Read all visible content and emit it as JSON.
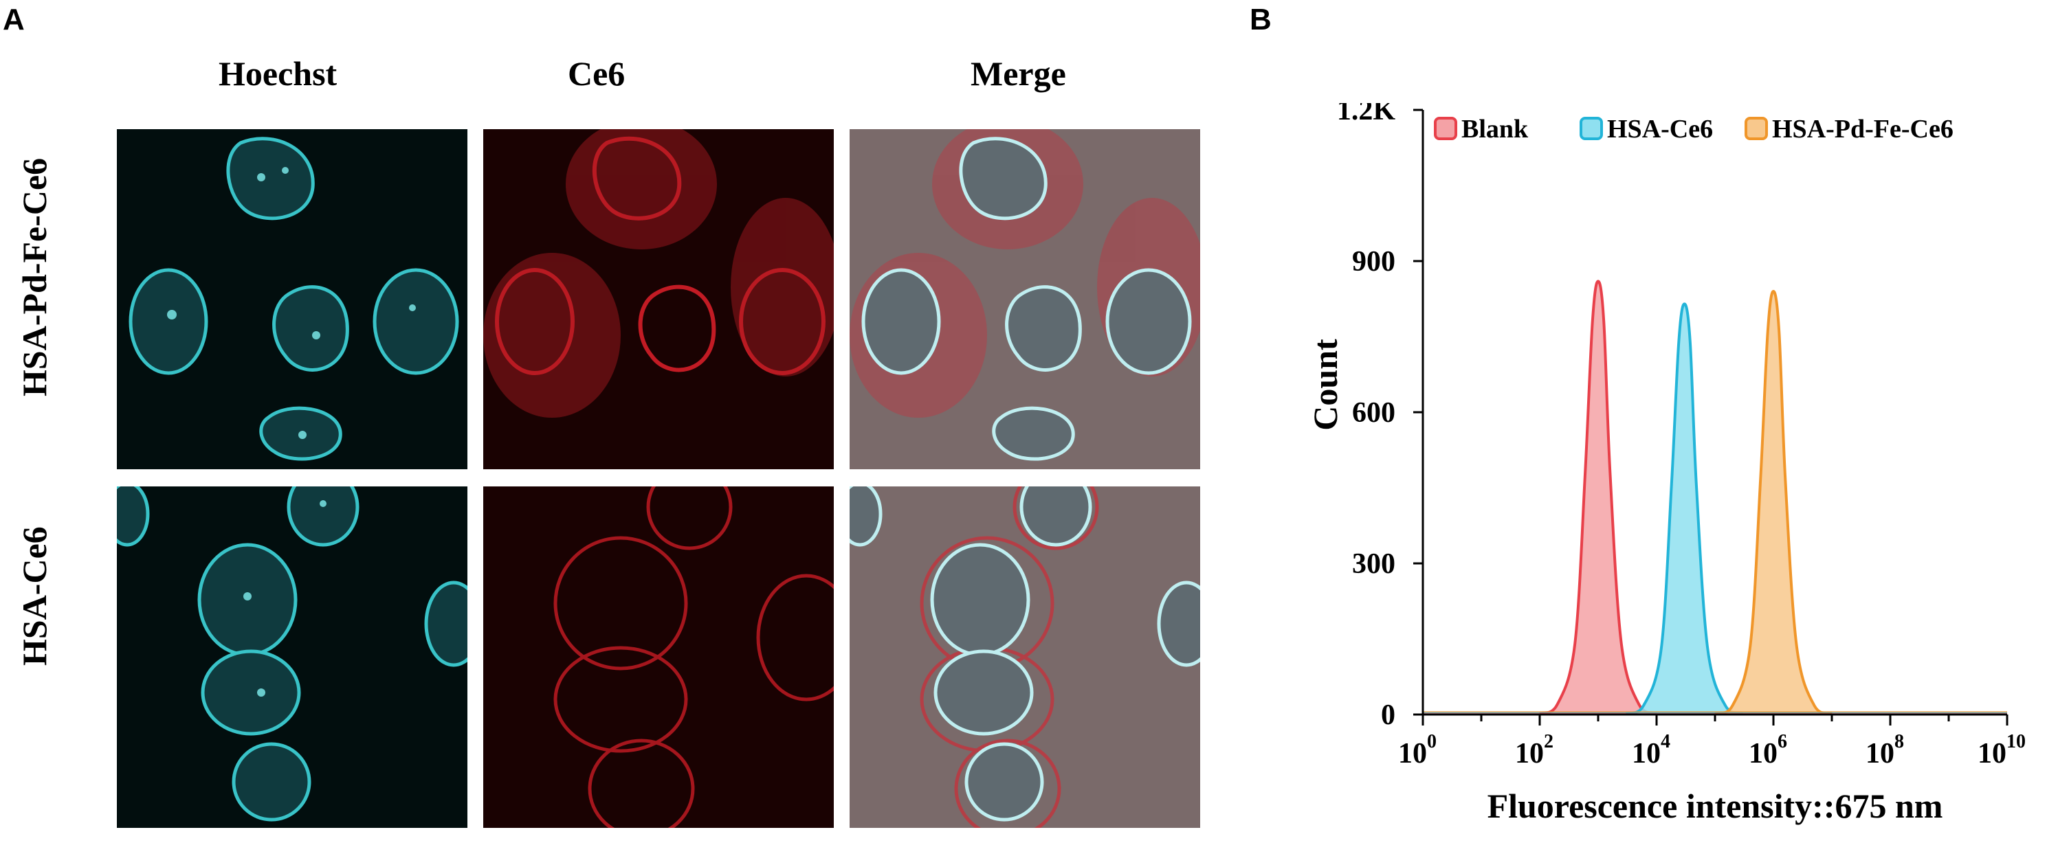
{
  "panel_a": {
    "letter": "A",
    "columns": [
      "Hoechst",
      "Ce6",
      "Merge"
    ],
    "rows": [
      "HSA-Pd-Fe-Ce6",
      "HSA-Ce6"
    ],
    "colors": {
      "hoechst": "#39c3c8",
      "ce6": "#e0202a",
      "merge_bg": "#7a6a6a"
    }
  },
  "panel_b": {
    "letter": "B"
  },
  "chart_data": {
    "type": "area",
    "xlabel": "Fluorescence intensity::675 nm",
    "ylabel": "Count",
    "x_scale": "log10",
    "xlim": [
      1,
      10000000000
    ],
    "ylim": [
      0,
      1200
    ],
    "x_ticks": [
      {
        "base": "10",
        "exp": "0",
        "value": 1
      },
      {
        "base": "10",
        "exp": "2",
        "value": 100
      },
      {
        "base": "10",
        "exp": "4",
        "value": 10000
      },
      {
        "base": "10",
        "exp": "6",
        "value": 1000000
      },
      {
        "base": "10",
        "exp": "8",
        "value": 100000000
      },
      {
        "base": "10",
        "exp": "10",
        "value": 10000000000
      }
    ],
    "y_ticks": [
      {
        "label": "0",
        "value": 0
      },
      {
        "label": "300",
        "value": 300
      },
      {
        "label": "600",
        "value": 600
      },
      {
        "label": "900",
        "value": 900
      },
      {
        "label": "1.2K",
        "value": 1200
      }
    ],
    "grid": false,
    "legend": "top",
    "series": [
      {
        "name": "Blank",
        "peak_x": 1000,
        "peak_count": 860,
        "color": "#e8404a",
        "fill": "#f4a2a6",
        "x": [
          100,
          200,
          400,
          600,
          800,
          1000,
          1250,
          1600,
          2500,
          5000,
          10000
        ],
        "y": [
          2,
          20,
          140,
          480,
          780,
          860,
          780,
          480,
          140,
          20,
          2
        ]
      },
      {
        "name": "HSA-Ce6",
        "peak_x": 30000,
        "peak_count": 815,
        "color": "#22b4d8",
        "fill": "#8fe0f0",
        "x": [
          3000,
          6000,
          12000,
          18000,
          24000,
          30000,
          37500,
          48000,
          75000,
          150000,
          300000
        ],
        "y": [
          2,
          18,
          130,
          455,
          740,
          815,
          740,
          455,
          130,
          18,
          2
        ]
      },
      {
        "name": "HSA-Pd-Fe-Ce6",
        "peak_x": 1000000,
        "peak_count": 840,
        "color": "#f0962a",
        "fill": "#f8c88c",
        "x": [
          100000,
          200000,
          400000,
          600000,
          800000,
          1000000,
          1250000,
          1600000,
          2500000,
          5000000,
          10000000
        ],
        "y": [
          2,
          18,
          135,
          465,
          760,
          840,
          760,
          465,
          135,
          18,
          2
        ]
      }
    ]
  }
}
